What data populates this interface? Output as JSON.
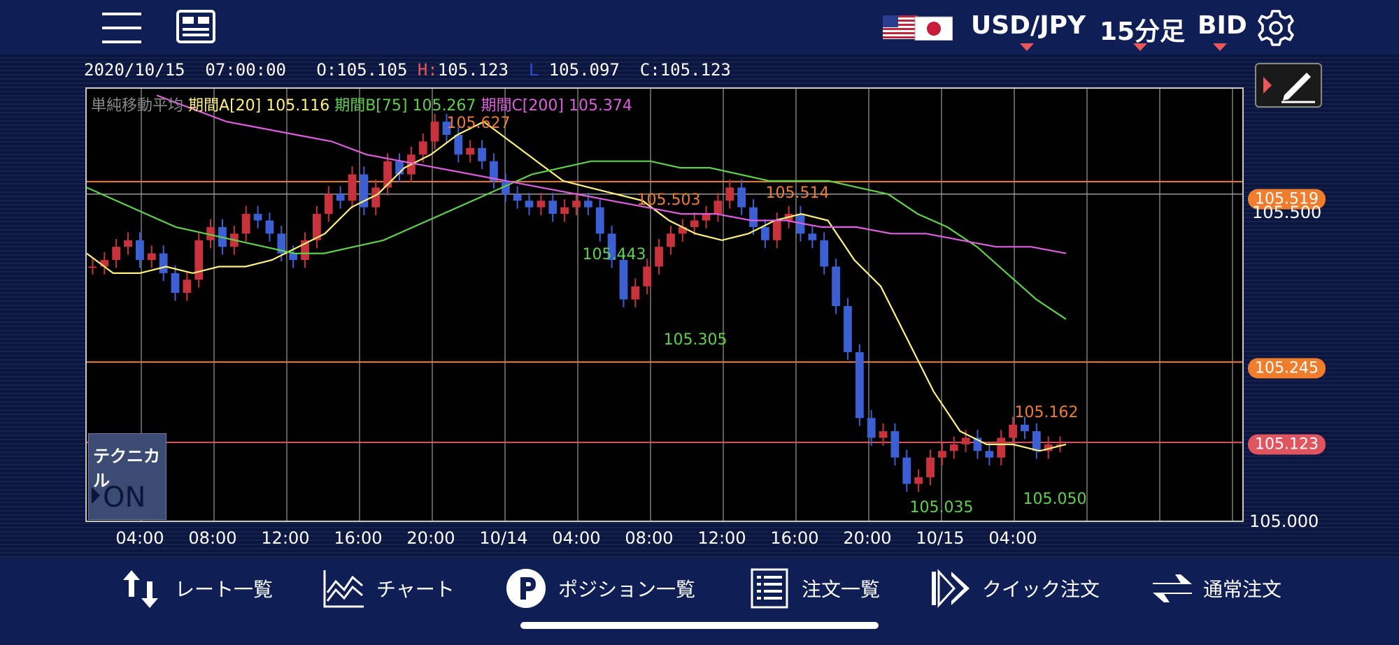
{
  "header": {
    "pair": "USD/JPY",
    "timeframe": "15分足",
    "price_type": "BID",
    "accent": "#e8585a"
  },
  "ohlc": {
    "datetime": "2020/10/15  07:00:00",
    "o_label": "O:",
    "o": "105.105",
    "h_label": "H:",
    "h": "105.123",
    "l_label": "L",
    "l": "105.097",
    "c_label": "C:",
    "c": "105.123"
  },
  "legend": {
    "title": "単純移動平均",
    "a": "期間A[20] 105.116",
    "b": "期間B[75] 105.267",
    "c": "期間C[200] 105.374",
    "colors": {
      "a": "#fff27a",
      "b": "#5ed14a",
      "c": "#e05ce0"
    }
  },
  "price_axis": {
    "top_label": "105.500",
    "bottom_label": "105.000",
    "tags": [
      {
        "value": "105.519",
        "color": "#ef7d2b"
      },
      {
        "value": "105.245",
        "color": "#ef7d2b"
      },
      {
        "value": "105.123",
        "color": "#e0545f"
      }
    ]
  },
  "time_axis": [
    "04:00",
    "08:00",
    "12:00",
    "16:00",
    "20:00",
    "10/14",
    "04:00",
    "08:00",
    "12:00",
    "16:00",
    "20:00",
    "10/15",
    "04:00"
  ],
  "annotations": {
    "highs": [
      "105.627",
      "105.503",
      "105.514",
      "105.162"
    ],
    "lows": [
      "105.443",
      "105.305",
      "105.035",
      "105.050"
    ],
    "high_color": "#ef7d2b",
    "low_color": "#5ed14a"
  },
  "technical": {
    "label": "テクニカル",
    "state": "ON"
  },
  "nav": [
    {
      "label": "レート一覧",
      "icon": "rate-list-icon"
    },
    {
      "label": "チャート",
      "icon": "chart-icon"
    },
    {
      "label": "ポジション一覧",
      "icon": "position-icon"
    },
    {
      "label": "注文一覧",
      "icon": "order-list-icon"
    },
    {
      "label": "クイック注文",
      "icon": "quick-order-icon"
    },
    {
      "label": "通常注文",
      "icon": "normal-order-icon"
    }
  ],
  "chart_data": {
    "type": "line",
    "ylim": [
      105.0,
      105.66
    ],
    "series": [
      {
        "name": "期間A[20]",
        "color": "#fff27a",
        "values": [
          105.41,
          105.38,
          105.38,
          105.39,
          105.38,
          105.39,
          105.39,
          105.4,
          105.42,
          105.44,
          105.48,
          105.5,
          105.54,
          105.56,
          105.59,
          105.61,
          105.58,
          105.55,
          105.52,
          105.51,
          105.5,
          105.49,
          105.46,
          105.44,
          105.43,
          105.44,
          105.46,
          105.47,
          105.46,
          105.4,
          105.36,
          105.28,
          105.2,
          105.14,
          105.12,
          105.12,
          105.11,
          105.12
        ]
      },
      {
        "name": "期間B[75]",
        "color": "#5ed14a",
        "values": [
          105.51,
          105.49,
          105.47,
          105.45,
          105.44,
          105.43,
          105.42,
          105.41,
          105.41,
          105.42,
          105.43,
          105.45,
          105.47,
          105.49,
          105.51,
          105.53,
          105.54,
          105.55,
          105.55,
          105.55,
          105.54,
          105.54,
          105.53,
          105.52,
          105.52,
          105.52,
          105.51,
          105.5,
          105.47,
          105.45,
          105.42,
          105.38,
          105.34,
          105.31
        ]
      },
      {
        "name": "期間C[200]",
        "color": "#e05ce0",
        "values": [
          105.65,
          105.63,
          105.61,
          105.6,
          105.59,
          105.58,
          105.56,
          105.55,
          105.54,
          105.53,
          105.52,
          105.51,
          105.5,
          105.49,
          105.48,
          105.47,
          105.47,
          105.46,
          105.46,
          105.45,
          105.45,
          105.44,
          105.44,
          105.43,
          105.42,
          105.42,
          105.41
        ]
      }
    ],
    "horizontal_lines": [
      105.519,
      105.245,
      105.123
    ],
    "close_series": [
      105.39,
      105.4,
      105.42,
      105.43,
      105.4,
      105.41,
      105.38,
      105.35,
      105.37,
      105.43,
      105.45,
      105.42,
      105.44,
      105.47,
      105.46,
      105.44,
      105.41,
      105.4,
      105.43,
      105.47,
      105.5,
      105.49,
      105.53,
      105.48,
      105.51,
      105.55,
      105.53,
      105.56,
      105.58,
      105.61,
      105.59,
      105.56,
      105.57,
      105.55,
      105.52,
      105.5,
      105.49,
      105.48,
      105.49,
      105.47,
      105.48,
      105.49,
      105.48,
      105.44,
      105.4,
      105.34,
      105.36,
      105.39,
      105.42,
      105.44,
      105.45,
      105.46,
      105.47,
      105.49,
      105.51,
      105.48,
      105.45,
      105.43,
      105.46,
      105.47,
      105.44,
      105.43,
      105.39,
      105.33,
      105.26,
      105.16,
      105.13,
      105.14,
      105.1,
      105.06,
      105.07,
      105.1,
      105.11,
      105.12,
      105.13,
      105.11,
      105.1,
      105.13,
      105.15,
      105.14,
      105.11,
      105.12,
      105.12
    ]
  }
}
